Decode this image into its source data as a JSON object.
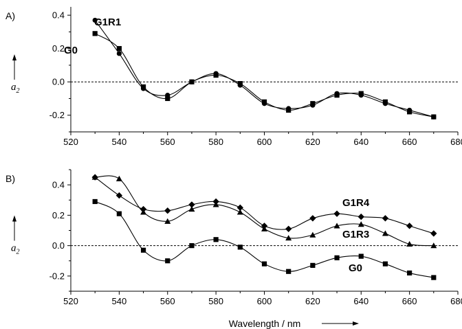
{
  "chart_data": [
    {
      "panel": "A)",
      "type": "line",
      "xlabel": "",
      "ylabel": "a2",
      "xlim": [
        520,
        680
      ],
      "ylim": [
        -0.3,
        0.45
      ],
      "xticks": [
        520,
        540,
        560,
        580,
        600,
        620,
        640,
        660,
        680
      ],
      "yticks": [
        -0.2,
        0.0,
        0.2,
        0.4
      ],
      "ytick_labels": [
        "-0.2",
        "0.0",
        "0.2",
        "0.4"
      ],
      "reference_line": {
        "y": 0,
        "style": "dashed"
      },
      "x": [
        530,
        540,
        550,
        560,
        570,
        580,
        590,
        600,
        610,
        620,
        630,
        640,
        650,
        660,
        670
      ],
      "series": [
        {
          "name": "G1R1",
          "marker": "circle",
          "values": [
            0.37,
            0.17,
            -0.04,
            -0.08,
            0.0,
            0.05,
            -0.02,
            -0.13,
            -0.16,
            -0.14,
            -0.07,
            -0.08,
            -0.13,
            -0.17,
            -0.21
          ]
        },
        {
          "name": "G0",
          "marker": "square",
          "values": [
            0.29,
            0.2,
            -0.03,
            -0.1,
            0.0,
            0.04,
            -0.01,
            -0.12,
            -0.17,
            -0.13,
            -0.08,
            -0.07,
            -0.12,
            -0.18,
            -0.21
          ]
        }
      ]
    },
    {
      "panel": "B)",
      "type": "line",
      "xlabel": "Wavelength / nm",
      "ylabel": "a2",
      "xlim": [
        520,
        680
      ],
      "ylim": [
        -0.3,
        0.5
      ],
      "xticks": [
        520,
        540,
        560,
        580,
        600,
        620,
        640,
        660,
        680
      ],
      "yticks": [
        -0.2,
        0.0,
        0.2,
        0.4
      ],
      "ytick_labels": [
        "-0.2",
        "0.0",
        "0.2",
        "0.4"
      ],
      "reference_line": {
        "y": 0,
        "style": "dashed"
      },
      "x": [
        530,
        540,
        550,
        560,
        570,
        580,
        590,
        600,
        610,
        620,
        630,
        640,
        650,
        660,
        670
      ],
      "series": [
        {
          "name": "G1R4",
          "marker": "diamond",
          "values": [
            0.45,
            0.33,
            0.24,
            0.23,
            0.27,
            0.29,
            0.25,
            0.13,
            0.11,
            0.18,
            0.21,
            0.19,
            0.18,
            0.13,
            0.08
          ]
        },
        {
          "name": "G1R3",
          "marker": "triangle",
          "values": [
            0.45,
            0.44,
            0.22,
            0.16,
            0.24,
            0.27,
            0.22,
            0.11,
            0.05,
            0.07,
            0.13,
            0.14,
            0.08,
            0.01,
            0.0
          ]
        },
        {
          "name": "G0",
          "marker": "square",
          "values": [
            0.29,
            0.21,
            -0.03,
            -0.1,
            0.0,
            0.04,
            -0.01,
            -0.12,
            -0.17,
            -0.13,
            -0.08,
            -0.07,
            -0.12,
            -0.18,
            -0.21
          ]
        }
      ]
    }
  ]
}
